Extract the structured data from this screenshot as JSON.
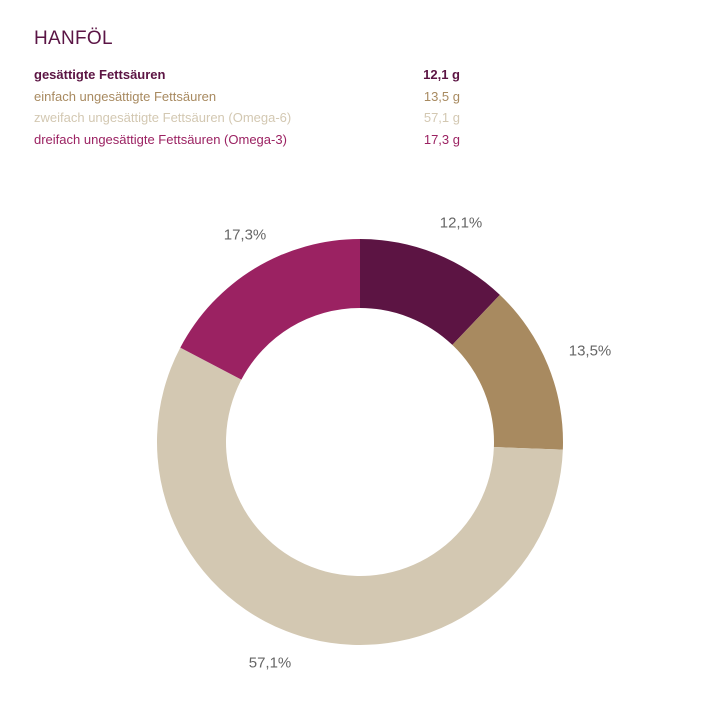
{
  "title": "HANFÖL",
  "legend": [
    {
      "label": "gesättigte Fettsäuren",
      "value": "12,1 g",
      "color": "#5c1443"
    },
    {
      "label": "einfach ungesättigte Fettsäuren",
      "value": "13,5 g",
      "color": "#a88a60"
    },
    {
      "label": "zweifach ungesättigte Fettsäuren (Omega-6)",
      "value": "57,1 g",
      "color": "#d3c8b2"
    },
    {
      "label": "dreifach ungesättigte Fettsäuren (Omega-3)",
      "value": "17,3 g",
      "color": "#9b2262"
    }
  ],
  "labels": [
    "12,1%",
    "13,5%",
    "57,1%",
    "17,3%"
  ],
  "chart_data": {
    "type": "pie",
    "title": "HANFÖL",
    "categories": [
      "gesättigte Fettsäuren",
      "einfach ungesättigte Fettsäuren",
      "zweifach ungesättigte Fettsäuren (Omega-6)",
      "dreifach ungesättigte Fettsäuren (Omega-3)"
    ],
    "values": [
      12.1,
      13.5,
      57.1,
      17.3
    ],
    "units": "g",
    "percent_labels": [
      "12,1%",
      "13,5%",
      "57,1%",
      "17,3%"
    ],
    "colors": [
      "#5c1443",
      "#a88a60",
      "#d3c8b2",
      "#9b2262"
    ],
    "donut": true,
    "start_angle_deg": 0,
    "direction": "clockwise",
    "legend_position": "top"
  }
}
